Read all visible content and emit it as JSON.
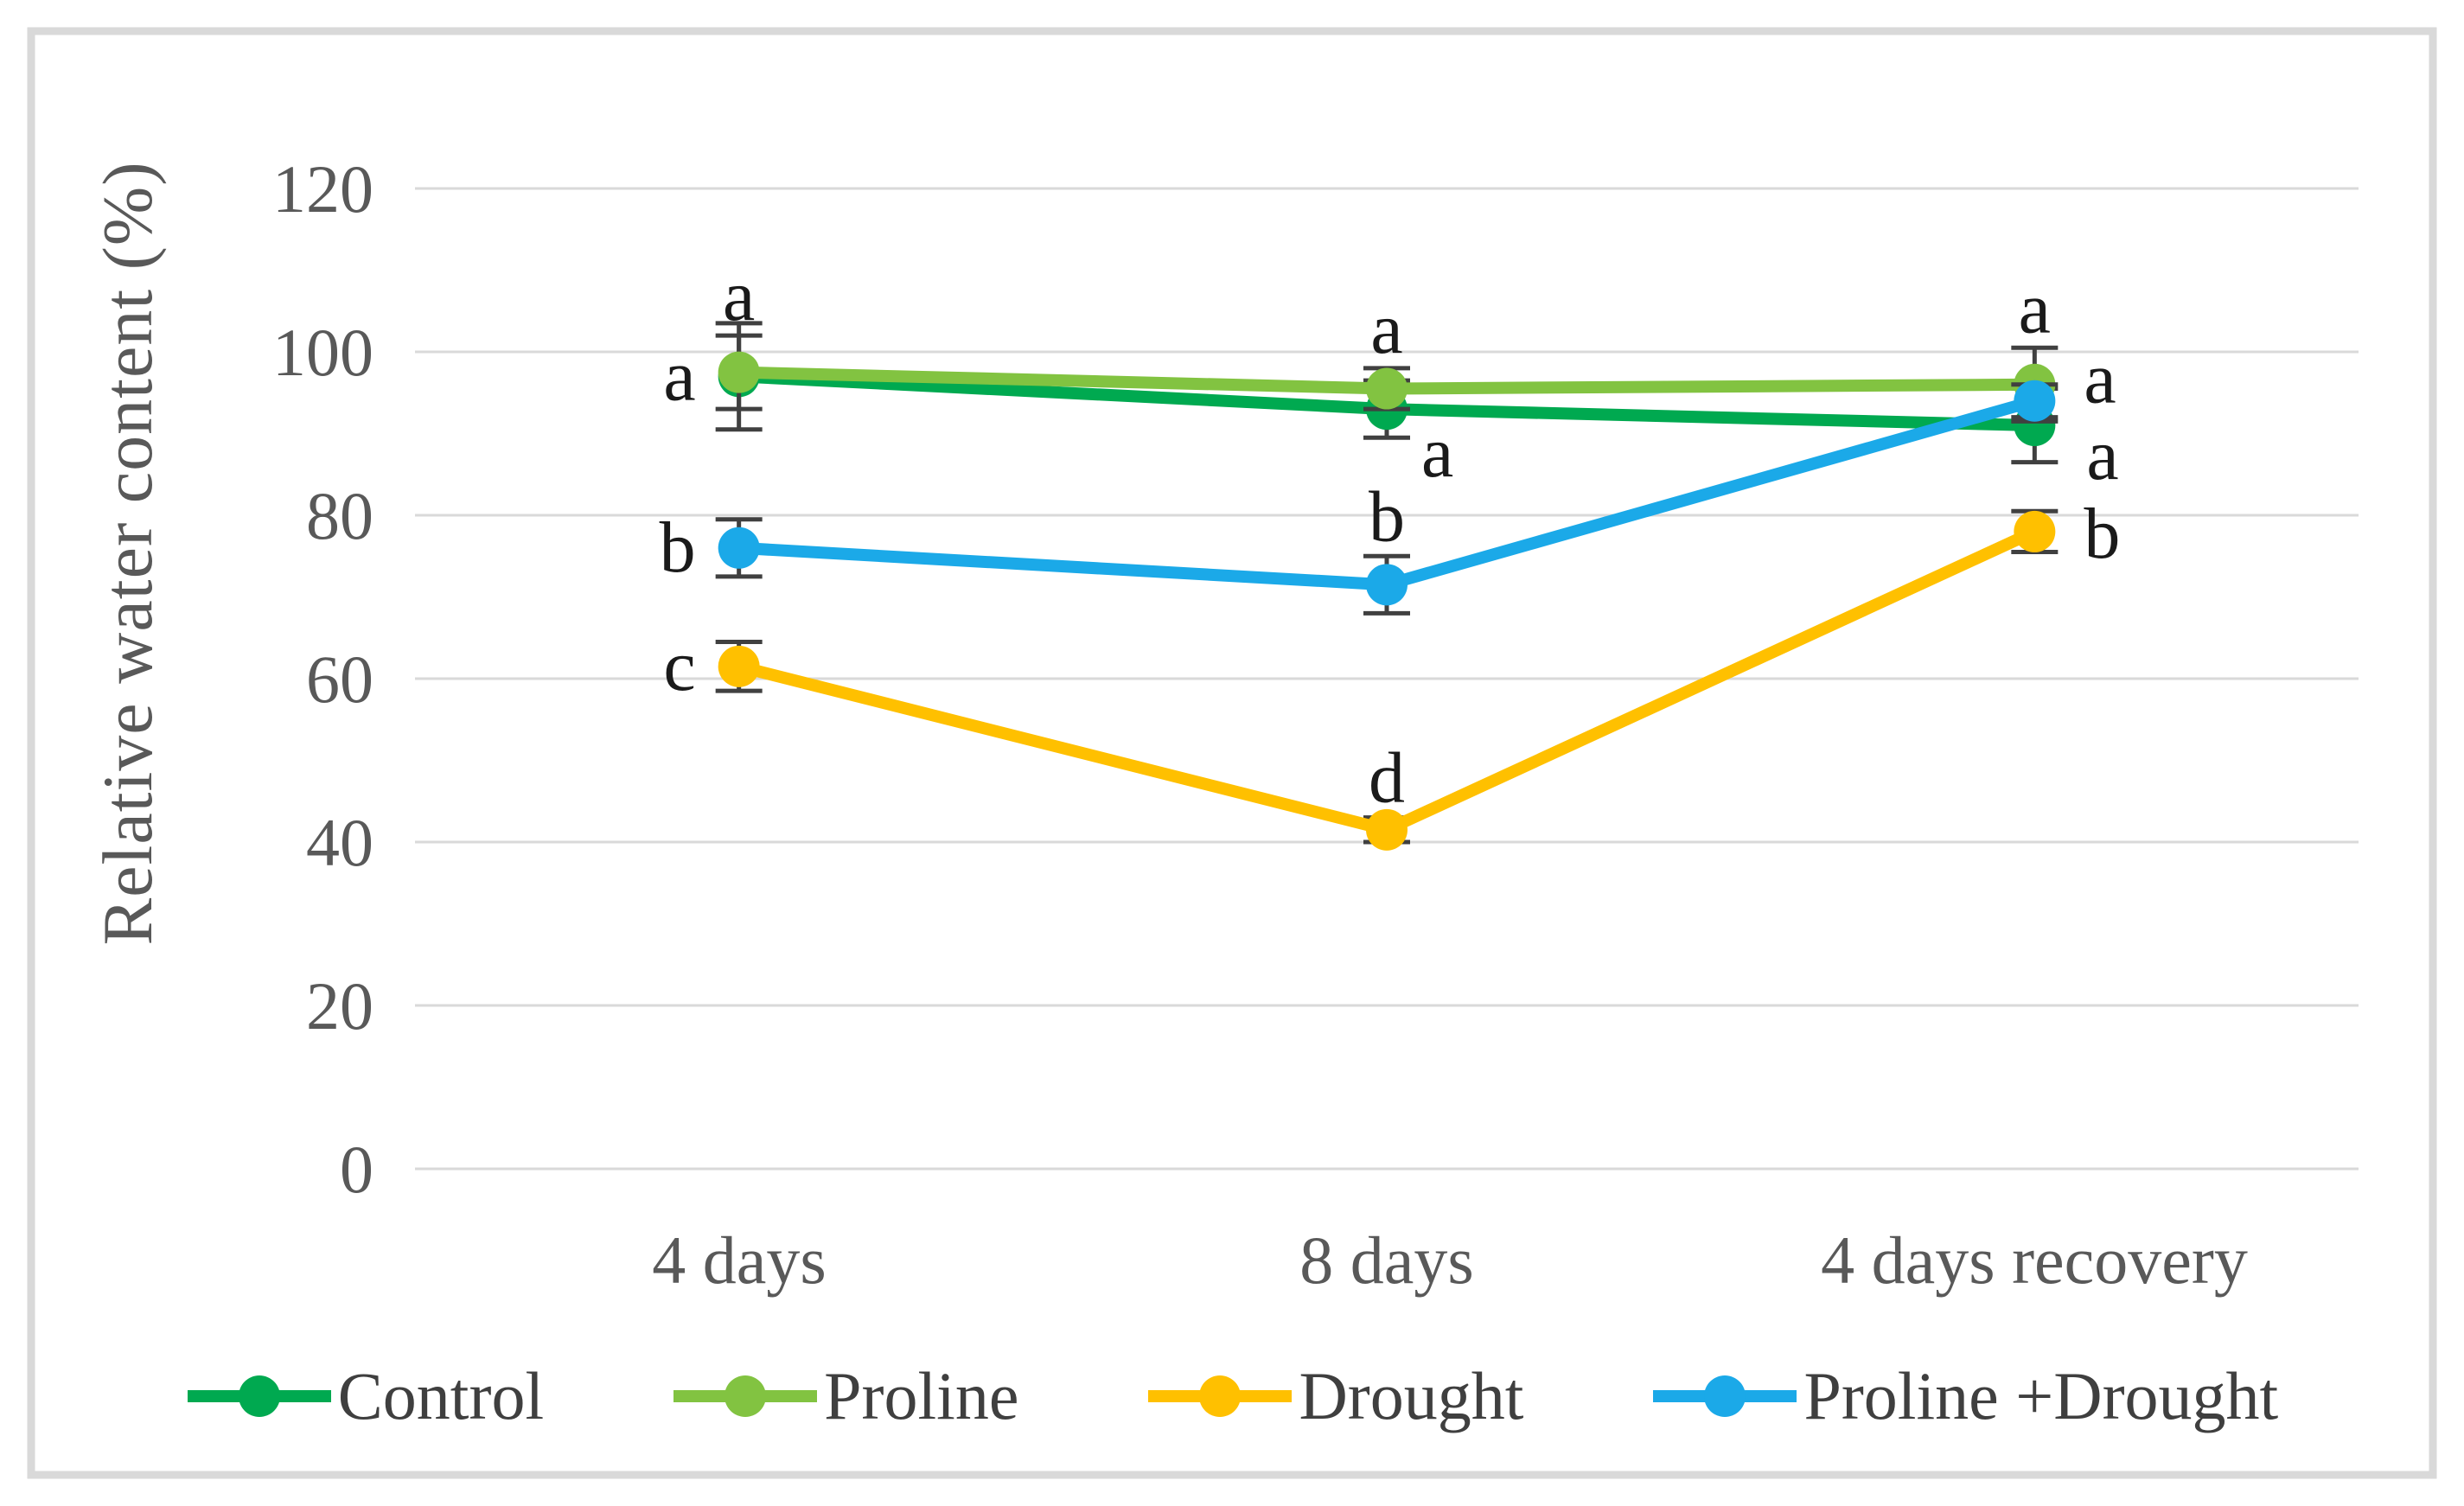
{
  "figure": {
    "y_axis_title": "Relative water content (%)"
  },
  "chart_data": {
    "type": "line",
    "title": "",
    "xlabel": "",
    "ylabel": "Relative water content (%)",
    "categories": [
      "4 days",
      "8 days",
      "4 days recovery"
    ],
    "ylim": [
      0,
      120
    ],
    "yticks": [
      0,
      20,
      40,
      60,
      80,
      100,
      120
    ],
    "grid": "horizontal",
    "legend_position": "bottom",
    "gridline_color": "#d9d9d9",
    "frame_color": "#d9d9d9",
    "error_bar_color": "#404040",
    "tick_label_color": "#595959",
    "letter_color": "#1a1a1a",
    "series": [
      {
        "name": "Control",
        "color": "#00A950",
        "values": [
          97,
          93,
          91
        ],
        "errors": [
          6.5,
          3.5,
          4.5
        ],
        "sig_letters": [
          "a",
          "a",
          "a"
        ],
        "letter_pos": [
          "left",
          "below-right",
          "right-down"
        ]
      },
      {
        "name": "Proline",
        "color": "#82C341",
        "values": [
          97.5,
          95.5,
          96
        ],
        "errors": [
          4.5,
          2.5,
          4.5
        ],
        "sig_letters": [
          "a",
          "a",
          "a"
        ],
        "letter_pos": [
          "above",
          "above",
          "above"
        ]
      },
      {
        "name": "Drought",
        "color": "#FFC000",
        "values": [
          61.5,
          41.5,
          78
        ],
        "errors": [
          3,
          1.5,
          2.5
        ],
        "sig_letters": [
          "c",
          "d",
          "b"
        ],
        "letter_pos": [
          "left",
          "above",
          "right"
        ]
      },
      {
        "name": "Proline +Drought",
        "color": "#1BA9E8",
        "values": [
          76,
          71.5,
          94
        ],
        "errors": [
          3.5,
          3.5,
          2
        ],
        "sig_letters": [
          "b",
          "b",
          "a"
        ],
        "letter_pos": [
          "left",
          "above",
          "right-up"
        ]
      }
    ]
  }
}
